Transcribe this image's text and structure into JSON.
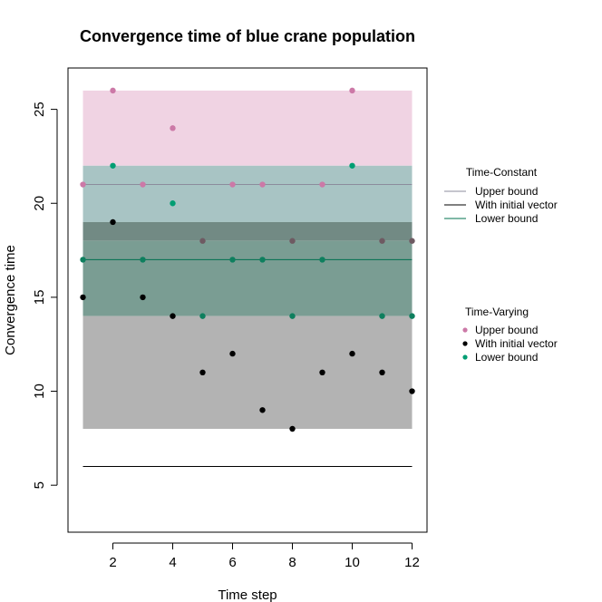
{
  "chart_data": {
    "type": "scatter",
    "title": "Convergence time of blue crane population",
    "xlabel": "Time step",
    "ylabel": "Convergence time",
    "xlim": [
      0.5,
      12.5
    ],
    "ylim": [
      2.5,
      27.2
    ],
    "xticks": [
      2,
      4,
      6,
      8,
      10,
      12
    ],
    "yticks": [
      5,
      10,
      15,
      20,
      25
    ],
    "grid": false,
    "colors": {
      "upper": "#CC79A7",
      "initial": "#000000",
      "lower": "#009E73",
      "upper_band": "#F0D3E3",
      "lower_band": "#7A9D93",
      "initial_band": "#B3B3B3",
      "overlap_band": "#A8C4C4",
      "triple_band": "#728A84"
    },
    "time_constant": {
      "legend_title": "Time-Constant",
      "series": [
        {
          "name": "Upper bound",
          "value": 21,
          "color": "#8C8C9C"
        },
        {
          "name": "With initial vector",
          "value": 6,
          "color": "#000000"
        },
        {
          "name": "Lower bound",
          "value": 17,
          "color": "#00704F"
        }
      ]
    },
    "bands": [
      {
        "series": "Upper bound",
        "min": 18,
        "max": 26
      },
      {
        "series": "With initial vector",
        "min": 8,
        "max": 19
      },
      {
        "series": "Lower bound",
        "min": 14,
        "max": 22
      }
    ],
    "x": [
      1,
      2,
      3,
      4,
      5,
      6,
      7,
      8,
      9,
      10,
      11,
      12
    ],
    "time_varying": {
      "legend_title": "Time-Varying",
      "series": [
        {
          "name": "Upper bound",
          "values": [
            21,
            26,
            21,
            24,
            18,
            21,
            21,
            18,
            21,
            26,
            18,
            18
          ]
        },
        {
          "name": "With initial vector",
          "values": [
            15,
            19,
            15,
            14,
            11,
            12,
            9,
            8,
            11,
            12,
            11,
            10
          ]
        },
        {
          "name": "Lower bound",
          "values": [
            17,
            22,
            17,
            20,
            14,
            17,
            17,
            14,
            17,
            22,
            14,
            14
          ]
        }
      ]
    },
    "legend_position": "right"
  }
}
